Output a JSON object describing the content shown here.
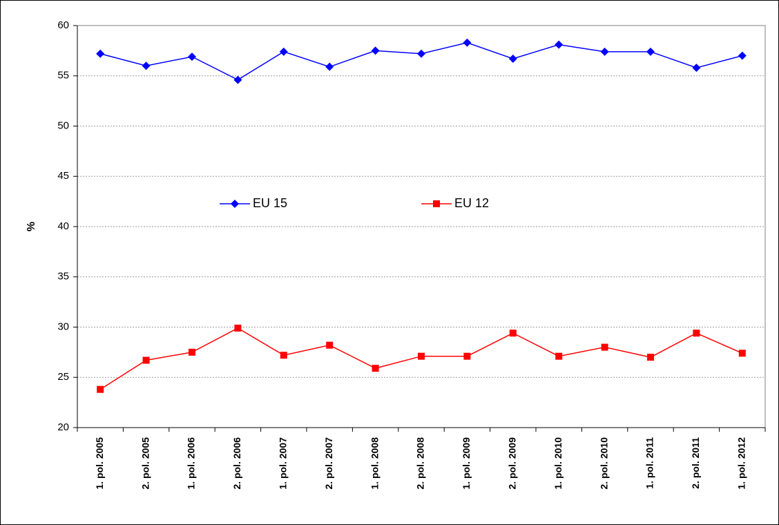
{
  "chart_data": {
    "type": "line",
    "y_label": "%",
    "categories": [
      "1. pol. 2005",
      "2. pol. 2005",
      "1. pol. 2006",
      "2. pol. 2006",
      "1. pol. 2007",
      "2. pol. 2007",
      "1. pol. 2008",
      "2. pol. 2008",
      "1. pol. 2009",
      "2. pol. 2009",
      "1. pol. 2010",
      "2. pol. 2010",
      "1. pol. 2011",
      "2. pol. 2011",
      "1. pol. 2012"
    ],
    "series": [
      {
        "name": "EU 15",
        "color": "#0000ff",
        "marker": "diamond",
        "values": [
          57.2,
          56.0,
          56.9,
          54.6,
          57.4,
          55.9,
          57.5,
          57.2,
          58.3,
          56.7,
          58.1,
          57.4,
          57.4,
          55.8,
          57.0
        ]
      },
      {
        "name": "EU 12",
        "color": "#ff0000",
        "marker": "square",
        "values": [
          23.8,
          26.7,
          27.5,
          29.9,
          27.2,
          28.2,
          25.9,
          27.1,
          27.1,
          29.4,
          27.1,
          28.0,
          27.0,
          29.4,
          27.4
        ]
      }
    ],
    "ylim": [
      20,
      60
    ],
    "yticks": [
      20,
      25,
      30,
      35,
      40,
      45,
      50,
      55,
      60
    ],
    "grid": true
  }
}
